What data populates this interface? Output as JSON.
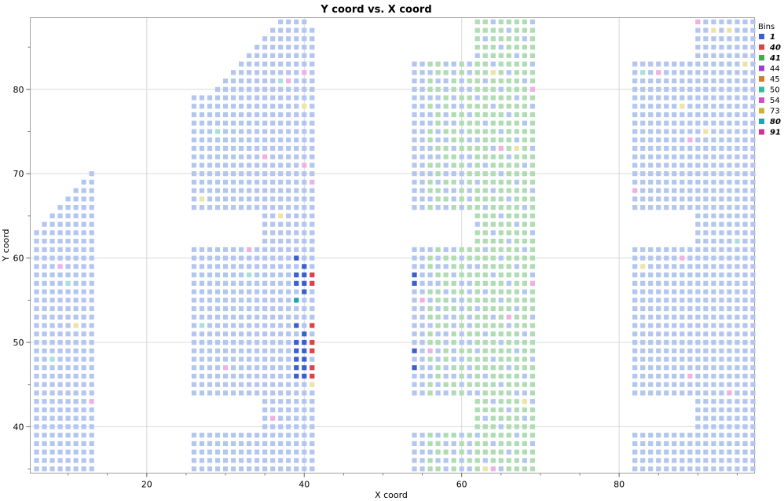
{
  "chart_data": {
    "type": "scatter",
    "title": "Y coord vs. X coord",
    "xlabel": "X coord",
    "ylabel": "Y coord",
    "xlim": [
      5.2,
      97.2
    ],
    "ylim": [
      34.5,
      88.5
    ],
    "xticks": [
      20,
      40,
      60,
      80
    ],
    "yticks": [
      40,
      50,
      60,
      70,
      80
    ],
    "grid": true,
    "legend": {
      "title": "Bins",
      "placement": "right",
      "entries": [
        {
          "label": "1",
          "color": "#3b5fcf",
          "emphasis": true
        },
        {
          "label": "40",
          "color": "#d9434a",
          "emphasis": true
        },
        {
          "label": "41",
          "color": "#3fae49",
          "emphasis": true
        },
        {
          "label": "44",
          "color": "#9b3fd8",
          "emphasis": false
        },
        {
          "label": "45",
          "color": "#d27b2f",
          "emphasis": false
        },
        {
          "label": "50",
          "color": "#2dbf9b",
          "emphasis": false
        },
        {
          "label": "54",
          "color": "#d04fc8",
          "emphasis": false
        },
        {
          "label": "73",
          "color": "#c9b332",
          "emphasis": false
        },
        {
          "label": "80",
          "color": "#1aa6b0",
          "emphasis": true
        },
        {
          "label": "91",
          "color": "#d0309e",
          "emphasis": true
        }
      ]
    },
    "faded_colors": {
      "1": "#b3c6ef",
      "41": "#afdcb3",
      "50": "#a8e0da",
      "54": "#efb0e2",
      "73": "#ece3a6"
    },
    "regions": [
      {
        "bin": "1",
        "x": [
          6,
          13
        ],
        "y": [
          35,
          69
        ],
        "notch": "upper-left-diagonal"
      },
      {
        "bin": "1",
        "x": [
          26,
          41
        ],
        "y": [
          35,
          87
        ],
        "notch": "upper-left-diagonal-and-cutouts"
      },
      {
        "bin": "41",
        "x": [
          54,
          69
        ],
        "y": [
          35,
          88
        ],
        "notch": "cutouts"
      },
      {
        "bin": "1",
        "x": [
          82,
          97
        ],
        "y": [
          35,
          88
        ],
        "notch": "cutouts"
      }
    ],
    "points": [
      {
        "bin": "1",
        "x": 39,
        "y": 60
      },
      {
        "bin": "1",
        "x": 40,
        "y": 59
      },
      {
        "bin": "1",
        "x": 39,
        "y": 58
      },
      {
        "bin": "1",
        "x": 40,
        "y": 58
      },
      {
        "bin": "1",
        "x": 39,
        "y": 57
      },
      {
        "bin": "1",
        "x": 40,
        "y": 57
      },
      {
        "bin": "1",
        "x": 40,
        "y": 56
      },
      {
        "bin": "1",
        "x": 39,
        "y": 52
      },
      {
        "bin": "1",
        "x": 40,
        "y": 51
      },
      {
        "bin": "1",
        "x": 39,
        "y": 50
      },
      {
        "bin": "1",
        "x": 40,
        "y": 50
      },
      {
        "bin": "1",
        "x": 39,
        "y": 49
      },
      {
        "bin": "1",
        "x": 40,
        "y": 49
      },
      {
        "bin": "1",
        "x": 39,
        "y": 48
      },
      {
        "bin": "1",
        "x": 40,
        "y": 48
      },
      {
        "bin": "1",
        "x": 39,
        "y": 47
      },
      {
        "bin": "1",
        "x": 40,
        "y": 47
      },
      {
        "bin": "1",
        "x": 39,
        "y": 46
      },
      {
        "bin": "1",
        "x": 40,
        "y": 46
      },
      {
        "bin": "1",
        "x": 54,
        "y": 58
      },
      {
        "bin": "1",
        "x": 54,
        "y": 57
      },
      {
        "bin": "1",
        "x": 54,
        "y": 49
      },
      {
        "bin": "1",
        "x": 54,
        "y": 47
      },
      {
        "bin": "40",
        "x": 41,
        "y": 58
      },
      {
        "bin": "40",
        "x": 41,
        "y": 57
      },
      {
        "bin": "40",
        "x": 41,
        "y": 52
      },
      {
        "bin": "40",
        "x": 41,
        "y": 50
      },
      {
        "bin": "40",
        "x": 41,
        "y": 49
      },
      {
        "bin": "40",
        "x": 41,
        "y": 47
      },
      {
        "bin": "40",
        "x": 41,
        "y": 46
      },
      {
        "bin": "80",
        "x": 39,
        "y": 55
      }
    ],
    "faded_points": [
      {
        "bin": "54",
        "x": 9,
        "y": 59
      },
      {
        "bin": "73",
        "x": 11,
        "y": 52
      },
      {
        "bin": "54",
        "x": 13,
        "y": 43
      },
      {
        "bin": "50",
        "x": 10,
        "y": 57
      },
      {
        "bin": "50",
        "x": 8,
        "y": 48
      },
      {
        "bin": "54",
        "x": 38,
        "y": 81
      },
      {
        "bin": "54",
        "x": 40,
        "y": 82
      },
      {
        "bin": "73",
        "x": 40,
        "y": 78
      },
      {
        "bin": "54",
        "x": 35,
        "y": 72
      },
      {
        "bin": "54",
        "x": 40,
        "y": 71
      },
      {
        "bin": "54",
        "x": 41,
        "y": 69
      },
      {
        "bin": "73",
        "x": 27,
        "y": 67
      },
      {
        "bin": "73",
        "x": 37,
        "y": 65
      },
      {
        "bin": "54",
        "x": 33,
        "y": 61
      },
      {
        "bin": "54",
        "x": 30,
        "y": 47
      },
      {
        "bin": "54",
        "x": 36,
        "y": 41
      },
      {
        "bin": "50",
        "x": 37,
        "y": 81
      },
      {
        "bin": "50",
        "x": 27,
        "y": 52
      },
      {
        "bin": "50",
        "x": 29,
        "y": 75
      },
      {
        "bin": "73",
        "x": 41,
        "y": 45
      },
      {
        "bin": "50",
        "x": 33,
        "y": 58
      },
      {
        "bin": "73",
        "x": 64,
        "y": 82
      },
      {
        "bin": "73",
        "x": 67,
        "y": 73
      },
      {
        "bin": "54",
        "x": 65,
        "y": 73
      },
      {
        "bin": "54",
        "x": 69,
        "y": 80
      },
      {
        "bin": "54",
        "x": 69,
        "y": 57
      },
      {
        "bin": "54",
        "x": 55,
        "y": 55
      },
      {
        "bin": "54",
        "x": 66,
        "y": 53
      },
      {
        "bin": "54",
        "x": 56,
        "y": 49
      },
      {
        "bin": "54",
        "x": 64,
        "y": 35
      },
      {
        "bin": "73",
        "x": 68,
        "y": 43
      },
      {
        "bin": "73",
        "x": 63,
        "y": 35
      },
      {
        "bin": "1",
        "x": 58,
        "y": 70
      },
      {
        "bin": "1",
        "x": 66,
        "y": 57
      },
      {
        "bin": "1",
        "x": 61,
        "y": 46
      },
      {
        "bin": "1",
        "x": 68,
        "y": 44
      },
      {
        "bin": "54",
        "x": 90,
        "y": 88
      },
      {
        "bin": "73",
        "x": 92,
        "y": 87
      },
      {
        "bin": "73",
        "x": 94,
        "y": 87
      },
      {
        "bin": "73",
        "x": 96,
        "y": 83
      },
      {
        "bin": "54",
        "x": 85,
        "y": 82
      },
      {
        "bin": "73",
        "x": 88,
        "y": 78
      },
      {
        "bin": "73",
        "x": 91,
        "y": 75
      },
      {
        "bin": "54",
        "x": 89,
        "y": 74
      },
      {
        "bin": "54",
        "x": 82,
        "y": 68
      },
      {
        "bin": "54",
        "x": 88,
        "y": 60
      },
      {
        "bin": "73",
        "x": 83,
        "y": 59
      },
      {
        "bin": "54",
        "x": 89,
        "y": 46
      },
      {
        "bin": "54",
        "x": 94,
        "y": 44
      },
      {
        "bin": "50",
        "x": 83,
        "y": 82
      },
      {
        "bin": "50",
        "x": 95,
        "y": 62
      }
    ]
  }
}
